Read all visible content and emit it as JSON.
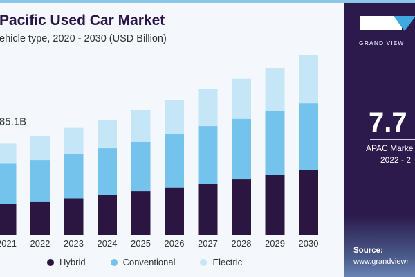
{
  "header": {
    "title": "Pacific Used Car Market",
    "subtitle": "ehicle type, 2020 - 2030 (USD Billion)"
  },
  "side_panel": {
    "brand": "GRAND VIEW",
    "stat": "7.7",
    "stat_label": "APAC Marke",
    "stat_period": "2022 - 2",
    "source_label": "Source:",
    "source_url": "www.grandviewr"
  },
  "chart_data": {
    "type": "bar",
    "stacked": true,
    "categories": [
      "2021",
      "2022",
      "2023",
      "2024",
      "2025",
      "2026",
      "2027",
      "2028",
      "2029",
      "2030"
    ],
    "series": [
      {
        "name": "Hybrid",
        "color": "#2b1541",
        "values": [
          28.6,
          31.2,
          34.0,
          37.5,
          40.7,
          44.2,
          47.6,
          51.7,
          56.0,
          60.3
        ]
      },
      {
        "name": "Conventional",
        "color": "#74c3ec",
        "values": [
          37.7,
          38.6,
          41.4,
          43.3,
          46.1,
          49.8,
          53.9,
          56.5,
          59.3,
          62.5
        ]
      },
      {
        "name": "Electric",
        "color": "#c5e6f7",
        "values": [
          18.8,
          22.4,
          24.4,
          26.3,
          29.6,
          31.7,
          34.9,
          37.5,
          40.5,
          44.8
        ]
      }
    ],
    "annotations": [
      {
        "category": "2021",
        "text": "85.1B"
      }
    ],
    "legend_position": "bottom",
    "grid": false,
    "ylim": [
      0,
      200
    ]
  }
}
